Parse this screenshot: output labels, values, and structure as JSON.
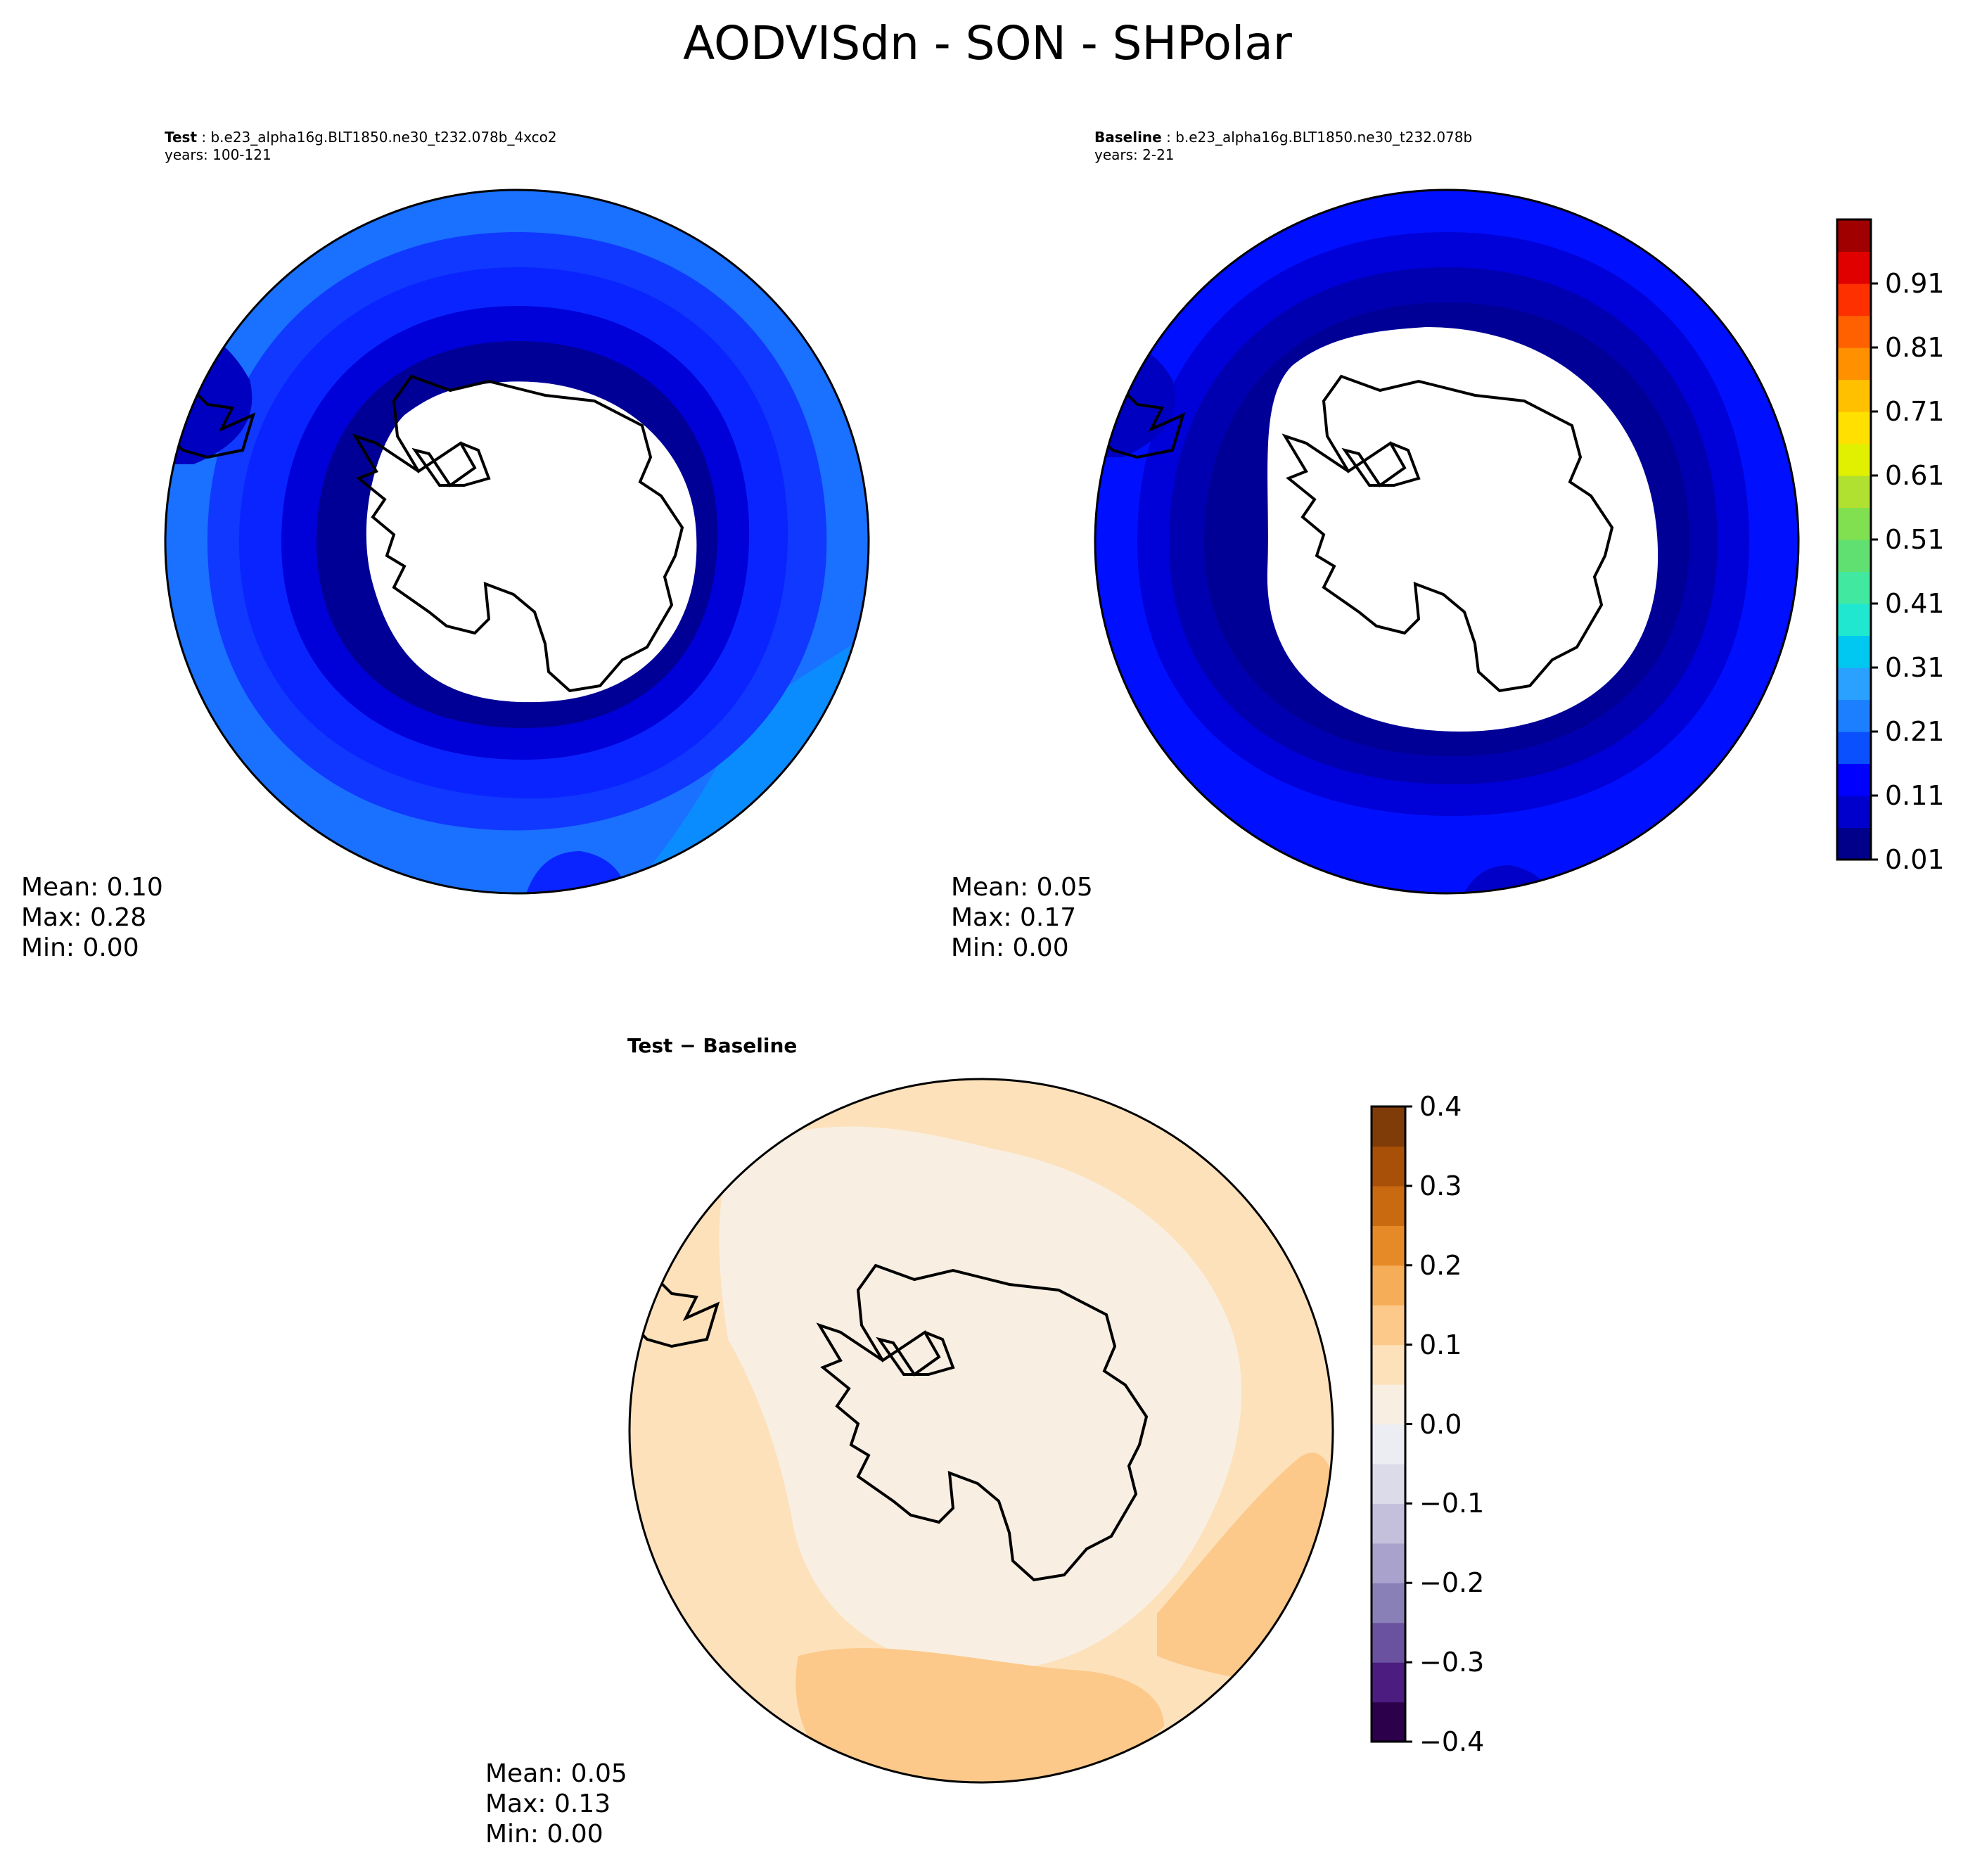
{
  "title": "AODVISdn - SON - SHPolar",
  "panels": {
    "test": {
      "label": "Test",
      "case": "b.e23_alpha16g.BLT1850.ne30_t232.078b_4xco2",
      "years": "years: 100-121",
      "mean": "Mean:  0.10",
      "max": "Max:  0.28",
      "min": "Min:  0.00"
    },
    "baseline": {
      "label": "Baseline",
      "case": "b.e23_alpha16g.BLT1850.ne30_t232.078b",
      "years": "years: 2-21",
      "mean": "Mean:  0.05",
      "max": "Max:  0.17",
      "min": "Min:  0.00"
    },
    "diff": {
      "label": "Test − Baseline",
      "mean": "Mean:  0.05",
      "max": "Max:  0.13",
      "min": "Min:  0.00"
    }
  },
  "chart_data": [
    {
      "type": "heatmap",
      "projection": "south-polar-stereographic",
      "panel": "test",
      "colorbar": "shared-right",
      "levels": [
        0.01,
        0.06,
        0.11,
        0.16,
        0.21,
        0.26,
        0.31,
        0.36,
        0.41,
        0.46,
        0.51,
        0.56,
        0.61,
        0.66,
        0.71,
        0.76,
        0.81,
        0.86,
        0.91,
        0.96
      ],
      "ring_colors": [
        "#1038ff",
        "#0a24ff",
        "#0010ee",
        "#0000c8",
        "#000096"
      ],
      "outer_colors": [
        "#1a70ff",
        "#00b4ff"
      ],
      "stats": {
        "mean": 0.1,
        "max": 0.28,
        "min": 0.0
      }
    },
    {
      "type": "heatmap",
      "projection": "south-polar-stereographic",
      "panel": "baseline",
      "levels": [
        0.01,
        0.06,
        0.11,
        0.16,
        0.21,
        0.26,
        0.31,
        0.36,
        0.41,
        0.46,
        0.51,
        0.56,
        0.61,
        0.66,
        0.71,
        0.76,
        0.81,
        0.86,
        0.91,
        0.96
      ],
      "ring_colors": [
        "#0010ff",
        "#0000d8",
        "#0000b0",
        "#000096"
      ],
      "stats": {
        "mean": 0.05,
        "max": 0.17,
        "min": 0.0
      }
    },
    {
      "type": "heatmap",
      "projection": "south-polar-stereographic",
      "panel": "diff",
      "levels": [
        -0.4,
        -0.35,
        -0.3,
        -0.25,
        -0.2,
        -0.15,
        -0.1,
        -0.05,
        0.0,
        0.05,
        0.1,
        0.15,
        0.2,
        0.25,
        0.3,
        0.35,
        0.4
      ],
      "fill_colors": [
        "#fde1bb",
        "#f8efe2",
        "#fcc98a"
      ],
      "stats": {
        "mean": 0.05,
        "max": 0.13,
        "min": 0.0
      }
    }
  ],
  "colorbars": {
    "main": {
      "ticks": [
        "0.91",
        "0.81",
        "0.71",
        "0.61",
        "0.51",
        "0.41",
        "0.31",
        "0.21",
        "0.11",
        "0.01"
      ],
      "colors": [
        "#00008b",
        "#0000cd",
        "#0000ff",
        "#0a50ff",
        "#1c7fff",
        "#2aa0ff",
        "#00c8f0",
        "#20e8d0",
        "#40e8a0",
        "#60e070",
        "#80e050",
        "#b0e030",
        "#e0f000",
        "#ffe000",
        "#ffc000",
        "#ff9000",
        "#ff6000",
        "#ff3000",
        "#e00000",
        "#a00000"
      ]
    },
    "diff": {
      "ticks": [
        "0.4",
        "0.3",
        "0.2",
        "0.1",
        "0.0",
        "−0.1",
        "−0.2",
        "−0.3",
        "−0.4"
      ],
      "colors": [
        "#2d004b",
        "#4c1c80",
        "#6a52a0",
        "#8a80b8",
        "#a9a2cc",
        "#c4c0dc",
        "#dcdbea",
        "#ececf3",
        "#f8efe2",
        "#fde1bb",
        "#fcc98a",
        "#f6ad58",
        "#e68a28",
        "#c96a10",
        "#a85008",
        "#7f3b08"
      ]
    }
  }
}
